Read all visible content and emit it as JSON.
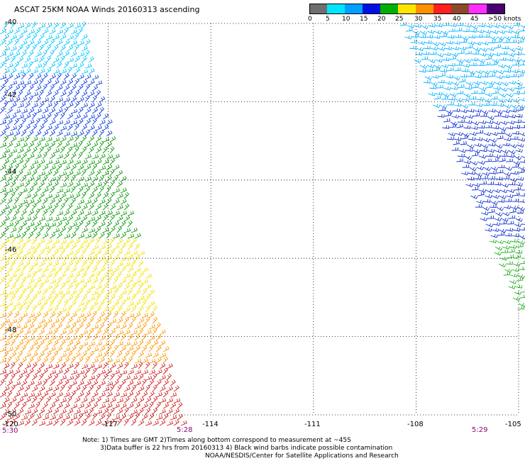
{
  "title": "ASCAT 25KM NOAA Winds 20160313 ascending",
  "legend": {
    "labels": [
      "0",
      "5",
      "10",
      "15",
      "20",
      "25",
      "30",
      "35",
      "40",
      "45",
      ">50 knots"
    ],
    "colors": [
      "#6e6e6e",
      "#00e5ff",
      "#00a0ff",
      "#0010e0",
      "#00b000",
      "#ffe400",
      "#ff9000",
      "#ff2020",
      "#8a4a2a",
      "#ff30ff",
      "#4a0070"
    ]
  },
  "lat_labels": [
    "-40",
    "-42",
    "-44",
    "-46",
    "-48",
    "-50"
  ],
  "lon_labels": [
    "-120",
    "-117",
    "-114",
    "-111",
    "-108",
    "-105"
  ],
  "time_labels": [
    "5:30",
    "5:28",
    "5:29"
  ],
  "notes": {
    "line1": "Note: 1) Times are GMT 2)Times along bottom correspond to measurement at ~45S",
    "line2": "3)Data buffer is 22 hrs from 20160313 4) Black wind barbs indicate possible contamination",
    "line3": "NOAA/NESDIS/Center for Satellite Applications and Research"
  },
  "map": {
    "lat_range": [
      -40,
      -50
    ],
    "lon_range": [
      -120,
      -105
    ],
    "wind_swaths": [
      {
        "name": "west",
        "bands": [
          {
            "lat_from": -40,
            "lat_to": -41.3,
            "speed": "5-10",
            "color": "#00c8ff"
          },
          {
            "lat_from": -41.3,
            "lat_to": -43.0,
            "speed": "10-15",
            "color": "#1040e0"
          },
          {
            "lat_from": -43.0,
            "lat_to": -45.5,
            "speed": "15-20",
            "color": "#109a10"
          },
          {
            "lat_from": -45.5,
            "lat_to": -47.5,
            "speed": "20-25",
            "color": "#f4e000"
          },
          {
            "lat_from": -47.5,
            "lat_to": -48.8,
            "speed": "25-30",
            "color": "#ff9800"
          },
          {
            "lat_from": -48.8,
            "lat_to": -50.4,
            "speed": "30-35",
            "color": "#d02020"
          }
        ]
      },
      {
        "name": "east",
        "bands": [
          {
            "lat_from": -40,
            "lat_to": -42.2,
            "speed": "5-10",
            "color": "#00b0ff"
          },
          {
            "lat_from": -42.2,
            "lat_to": -45.5,
            "speed": "10-15",
            "color": "#1030d0"
          },
          {
            "lat_from": -45.5,
            "lat_to": -47.7,
            "speed": "15-20",
            "color": "#20b020"
          }
        ]
      }
    ]
  }
}
